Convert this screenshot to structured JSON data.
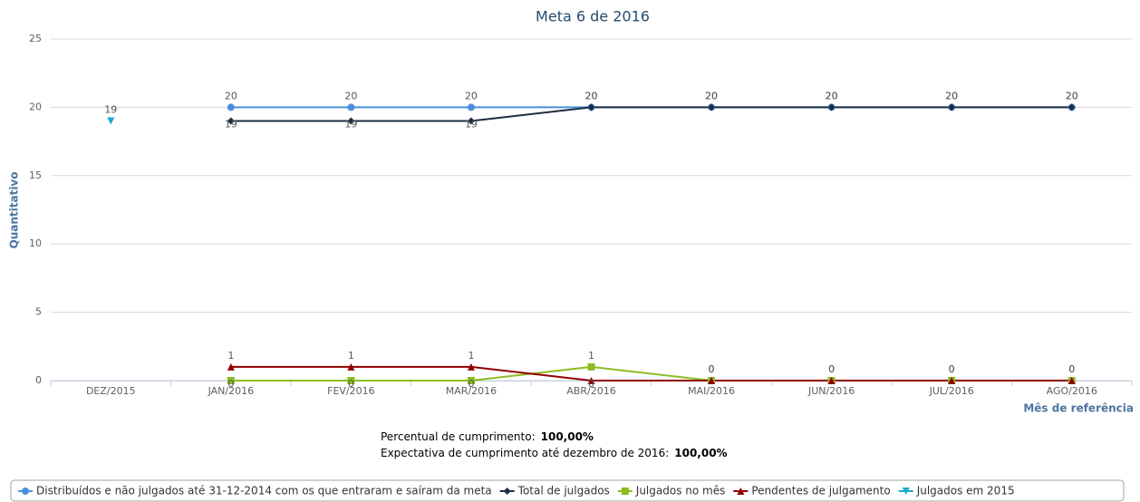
{
  "chart_data": {
    "type": "line",
    "title": "Meta 6 de 2016",
    "y_label": "Quantitativo",
    "x_label": "Mês de referência",
    "categories": [
      "DEZ/2015",
      "JAN/2016",
      "FEV/2016",
      "MAR/2016",
      "ABR/2016",
      "MAI/2016",
      "JUN/2016",
      "JUL/2016",
      "AGO/2016"
    ],
    "ylim": [
      0,
      25
    ],
    "yticks": [
      0,
      5,
      10,
      15,
      20,
      25
    ],
    "grid": true,
    "series": [
      {
        "name": "Distribuídos e não julgados até 31-12-2014 com os que entraram e saíram da meta",
        "color": "#4a8fdc",
        "marker": "circle",
        "values": [
          null,
          20,
          20,
          20,
          20,
          20,
          20,
          20,
          20
        ]
      },
      {
        "name": "Total de julgados",
        "color": "#1c2e45",
        "marker": "diamond",
        "values": [
          null,
          19,
          19,
          19,
          20,
          20,
          20,
          20,
          20
        ]
      },
      {
        "name": "Julgados no mês",
        "color": "#8bbc21",
        "marker": "square",
        "values": [
          null,
          0,
          0,
          0,
          1,
          0,
          0,
          0,
          0
        ]
      },
      {
        "name": "Pendentes de julgamento",
        "color": "#910000",
        "marker": "triangle",
        "values": [
          null,
          1,
          1,
          1,
          0,
          0,
          0,
          0,
          0
        ]
      },
      {
        "name": "Julgados em 2015",
        "color": "#1aadce",
        "marker": "triangle-down",
        "values": [
          19,
          null,
          null,
          null,
          null,
          null,
          null,
          null,
          null
        ]
      }
    ],
    "legend": "bottom",
    "footnotes": [
      {
        "label": "Percentual de cumprimento:",
        "value": "100,00%"
      },
      {
        "label": "Expectativa de cumprimento até dezembro de 2016:",
        "value": "100,00%"
      }
    ]
  }
}
